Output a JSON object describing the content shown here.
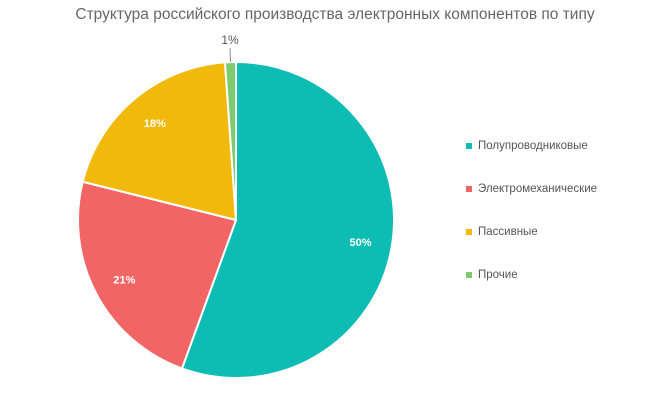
{
  "chart_data": {
    "type": "pie",
    "title": "Структура российского производства электронных компонентов по типу",
    "categories": [
      "Полупроводниковые",
      "Электромеханические",
      "Пассивные",
      "Прочие"
    ],
    "values": [
      50,
      21,
      18,
      1
    ],
    "labels": [
      "50%",
      "21%",
      "18%",
      "1%"
    ],
    "colors": [
      "#0dbdb3",
      "#f26565",
      "#f2b90d",
      "#7dcb6f"
    ],
    "legend_position": "right",
    "start_angle_deg": 0,
    "direction": "clockwise"
  }
}
